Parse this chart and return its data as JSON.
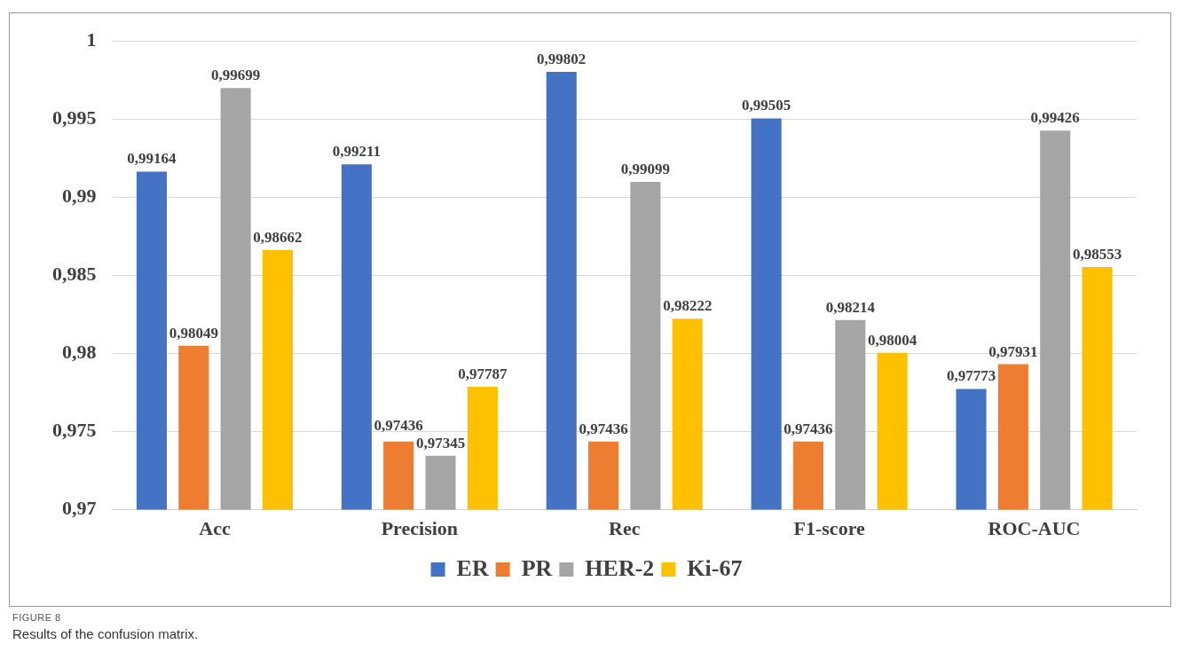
{
  "chart_data": {
    "type": "bar",
    "categories": [
      "Acc",
      "Precision",
      "Rec",
      "F1-score",
      "ROC-AUC"
    ],
    "series": [
      {
        "name": "ER",
        "color": "#4472c4",
        "values": [
          0.99164,
          0.99211,
          0.99802,
          0.99505,
          0.97773
        ],
        "value_labels": [
          "0,99164",
          "0,99211",
          "0,99802",
          "0,99505",
          "0,97773"
        ]
      },
      {
        "name": "PR",
        "color": "#ed7d31",
        "values": [
          0.98049,
          0.97436,
          0.97436,
          0.97436,
          0.97931
        ],
        "value_labels": [
          "0,98049",
          "0,97436",
          "0,97436",
          "0,97436",
          "0,97931"
        ]
      },
      {
        "name": "HER-2",
        "color": "#a5a5a5",
        "values": [
          0.99699,
          0.97345,
          0.99099,
          0.98214,
          0.99426
        ],
        "value_labels": [
          "0,99699",
          "0,97345",
          "0,99099",
          "0,98214",
          "0,99426"
        ]
      },
      {
        "name": "Ki-67",
        "color": "#ffc000",
        "values": [
          0.98662,
          0.97787,
          0.98222,
          0.98004,
          0.98553
        ],
        "value_labels": [
          "0,98662",
          "0,97787",
          "0,98222",
          "0,98004",
          "0,98553"
        ]
      }
    ],
    "ylim": [
      0.97,
      1
    ],
    "yticks": [
      {
        "value": 0.97,
        "label": "0,97"
      },
      {
        "value": 0.975,
        "label": "0,975"
      },
      {
        "value": 0.98,
        "label": "0,98"
      },
      {
        "value": 0.985,
        "label": "0,985"
      },
      {
        "value": 0.99,
        "label": "0,99"
      },
      {
        "value": 0.995,
        "label": "0,995"
      },
      1
    ],
    "grid": "y",
    "legend": "bottom",
    "annotations": [
      "FIGURE 8",
      "Results of the confusion matrix."
    ]
  }
}
